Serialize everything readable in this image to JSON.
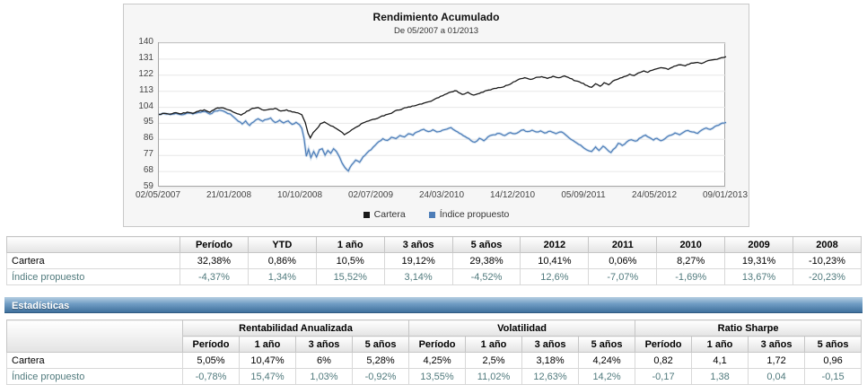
{
  "chart_data": {
    "type": "line",
    "title": "Rendimiento Acumulado",
    "subtitle": "De 05/2007 a 01/2013",
    "ylim": [
      59,
      140
    ],
    "y_ticks": [
      140,
      131,
      122,
      113,
      104,
      95,
      86,
      77,
      68,
      59
    ],
    "x_tick_labels": [
      "02/05/2007",
      "21/01/2008",
      "10/10/2008",
      "02/07/2009",
      "24/03/2010",
      "14/12/2010",
      "05/09/2011",
      "24/05/2012",
      "09/01/2013"
    ],
    "grid": "horizontal",
    "legend_position": "bottom-center",
    "series": [
      {
        "name": "Cartera",
        "color": "#1a1a1a",
        "points": [
          [
            0,
            100
          ],
          [
            0.01,
            100.6
          ],
          [
            0.02,
            100.2
          ],
          [
            0.03,
            101
          ],
          [
            0.04,
            100.4
          ],
          [
            0.05,
            101.3
          ],
          [
            0.06,
            100.6
          ],
          [
            0.07,
            101.8
          ],
          [
            0.08,
            102.6
          ],
          [
            0.09,
            101.2
          ],
          [
            0.1,
            103.2
          ],
          [
            0.11,
            103.8
          ],
          [
            0.117,
            103.2
          ],
          [
            0.126,
            102.3
          ],
          [
            0.135,
            100.8
          ],
          [
            0.145,
            99.6
          ],
          [
            0.155,
            101.8
          ],
          [
            0.165,
            103.4
          ],
          [
            0.175,
            103.9
          ],
          [
            0.185,
            102.4
          ],
          [
            0.195,
            102.9
          ],
          [
            0.205,
            103.4
          ],
          [
            0.215,
            101.9
          ],
          [
            0.225,
            102.6
          ],
          [
            0.235,
            101.4
          ],
          [
            0.245,
            100.9
          ],
          [
            0.252,
            99.8
          ],
          [
            0.258,
            95.5
          ],
          [
            0.263,
            89.5
          ],
          [
            0.267,
            86.8
          ],
          [
            0.272,
            89.8
          ],
          [
            0.278,
            91.8
          ],
          [
            0.285,
            94.8
          ],
          [
            0.292,
            95.8
          ],
          [
            0.3,
            94.2
          ],
          [
            0.31,
            92.6
          ],
          [
            0.32,
            90.6
          ],
          [
            0.327,
            88.6
          ],
          [
            0.333,
            89.8
          ],
          [
            0.34,
            91.4
          ],
          [
            0.35,
            93.2
          ],
          [
            0.36,
            95.2
          ],
          [
            0.37,
            96.4
          ],
          [
            0.381,
            97.4
          ],
          [
            0.39,
            98.6
          ],
          [
            0.4,
            99.8
          ],
          [
            0.41,
            100.6
          ],
          [
            0.42,
            102.4
          ],
          [
            0.43,
            103.2
          ],
          [
            0.44,
            104.2
          ],
          [
            0.45,
            104.8
          ],
          [
            0.46,
            105.8
          ],
          [
            0.47,
            106.6
          ],
          [
            0.48,
            107.4
          ],
          [
            0.49,
            109.2
          ],
          [
            0.5,
            110.4
          ],
          [
            0.508,
            111.6
          ],
          [
            0.515,
            112.6
          ],
          [
            0.525,
            113.2
          ],
          [
            0.535,
            111.2
          ],
          [
            0.545,
            112.4
          ],
          [
            0.555,
            110.8
          ],
          [
            0.565,
            111.8
          ],
          [
            0.575,
            113.2
          ],
          [
            0.585,
            113.8
          ],
          [
            0.595,
            114.6
          ],
          [
            0.605,
            115.2
          ],
          [
            0.615,
            116.4
          ],
          [
            0.625,
            118.2
          ],
          [
            0.635,
            119.8
          ],
          [
            0.645,
            120.6
          ],
          [
            0.655,
            119.6
          ],
          [
            0.665,
            120.8
          ],
          [
            0.675,
            121.2
          ],
          [
            0.685,
            120.2
          ],
          [
            0.695,
            121.4
          ],
          [
            0.705,
            120.6
          ],
          [
            0.715,
            121.6
          ],
          [
            0.725,
            120.2
          ],
          [
            0.735,
            118.8
          ],
          [
            0.745,
            117.6
          ],
          [
            0.755,
            116.2
          ],
          [
            0.763,
            115.2
          ],
          [
            0.77,
            117.2
          ],
          [
            0.778,
            115.8
          ],
          [
            0.785,
            117.8
          ],
          [
            0.793,
            116.6
          ],
          [
            0.8,
            118.6
          ],
          [
            0.81,
            119.9
          ],
          [
            0.82,
            121.2
          ],
          [
            0.83,
            122.6
          ],
          [
            0.838,
            121.8
          ],
          [
            0.845,
            123.2
          ],
          [
            0.855,
            124.4
          ],
          [
            0.862,
            123.6
          ],
          [
            0.87,
            124.8
          ],
          [
            0.878,
            125.6
          ],
          [
            0.885,
            126.2
          ],
          [
            0.89,
            126
          ],
          [
            0.898,
            125.2
          ],
          [
            0.905,
            126.4
          ],
          [
            0.912,
            127.2
          ],
          [
            0.92,
            127.8
          ],
          [
            0.928,
            127.2
          ],
          [
            0.935,
            128.2
          ],
          [
            0.942,
            128.8
          ],
          [
            0.95,
            129.2
          ],
          [
            0.957,
            128.6
          ],
          [
            0.965,
            129.8
          ],
          [
            0.972,
            130.4
          ],
          [
            0.98,
            130.8
          ],
          [
            0.988,
            131.4
          ],
          [
            1,
            132.4
          ]
        ]
      },
      {
        "name": "Índice propuesto",
        "color": "#4d7db8",
        "halo_color": "#a8c4e0",
        "points": [
          [
            0,
            100
          ],
          [
            0.01,
            100.4
          ],
          [
            0.02,
            99.9
          ],
          [
            0.03,
            100.6
          ],
          [
            0.04,
            99.8
          ],
          [
            0.05,
            100.8
          ],
          [
            0.06,
            100.2
          ],
          [
            0.07,
            101.2
          ],
          [
            0.08,
            101.6
          ],
          [
            0.09,
            100.2
          ],
          [
            0.1,
            101.9
          ],
          [
            0.11,
            102.2
          ],
          [
            0.117,
            101.4
          ],
          [
            0.126,
            100.2
          ],
          [
            0.133,
            98.2
          ],
          [
            0.14,
            96.2
          ],
          [
            0.147,
            94.6
          ],
          [
            0.153,
            96.4
          ],
          [
            0.16,
            93.8
          ],
          [
            0.167,
            95.8
          ],
          [
            0.175,
            97.6
          ],
          [
            0.183,
            96.2
          ],
          [
            0.19,
            97.2
          ],
          [
            0.197,
            98
          ],
          [
            0.205,
            95.4
          ],
          [
            0.213,
            96.8
          ],
          [
            0.22,
            95.2
          ],
          [
            0.228,
            96.4
          ],
          [
            0.235,
            94.4
          ],
          [
            0.242,
            95.6
          ],
          [
            0.248,
            94.2
          ],
          [
            0.252,
            92.2
          ],
          [
            0.256,
            86.5
          ],
          [
            0.26,
            76.5
          ],
          [
            0.264,
            80.5
          ],
          [
            0.268,
            75.8
          ],
          [
            0.273,
            79.2
          ],
          [
            0.278,
            76.2
          ],
          [
            0.283,
            80.2
          ],
          [
            0.288,
            80.8
          ],
          [
            0.293,
            77.2
          ],
          [
            0.298,
            79.8
          ],
          [
            0.303,
            78.2
          ],
          [
            0.308,
            80.8
          ],
          [
            0.313,
            79.2
          ],
          [
            0.318,
            76.4
          ],
          [
            0.323,
            72.8
          ],
          [
            0.328,
            70.2
          ],
          [
            0.334,
            68.3
          ],
          [
            0.34,
            71.8
          ],
          [
            0.347,
            74.4
          ],
          [
            0.354,
            73.2
          ],
          [
            0.36,
            76.2
          ],
          [
            0.367,
            78.4
          ],
          [
            0.374,
            80.2
          ],
          [
            0.381,
            82.6
          ],
          [
            0.388,
            84.8
          ],
          [
            0.395,
            86.4
          ],
          [
            0.403,
            85.4
          ],
          [
            0.41,
            87.2
          ],
          [
            0.418,
            86.4
          ],
          [
            0.425,
            88.2
          ],
          [
            0.433,
            87.4
          ],
          [
            0.44,
            89.2
          ],
          [
            0.448,
            88.4
          ],
          [
            0.455,
            90.2
          ],
          [
            0.462,
            91.2
          ],
          [
            0.467,
            91.7
          ],
          [
            0.475,
            90.4
          ],
          [
            0.483,
            91.4
          ],
          [
            0.49,
            90.2
          ],
          [
            0.5,
            91.2
          ],
          [
            0.508,
            91.8
          ],
          [
            0.515,
            92.6
          ],
          [
            0.523,
            90.8
          ],
          [
            0.53,
            89.4
          ],
          [
            0.54,
            87.6
          ],
          [
            0.55,
            85.4
          ],
          [
            0.557,
            84.4
          ],
          [
            0.565,
            86.6
          ],
          [
            0.573,
            85.2
          ],
          [
            0.58,
            87.4
          ],
          [
            0.59,
            88.6
          ],
          [
            0.6,
            89.4
          ],
          [
            0.61,
            88.2
          ],
          [
            0.62,
            89.8
          ],
          [
            0.628,
            89.2
          ],
          [
            0.635,
            90.2
          ],
          [
            0.643,
            91.4
          ],
          [
            0.65,
            90.4
          ],
          [
            0.658,
            91.2
          ],
          [
            0.665,
            90.2
          ],
          [
            0.673,
            90.8
          ],
          [
            0.68,
            89.6
          ],
          [
            0.69,
            90.6
          ],
          [
            0.7,
            89.2
          ],
          [
            0.71,
            90.2
          ],
          [
            0.72,
            87.8
          ],
          [
            0.73,
            85.4
          ],
          [
            0.74,
            83.2
          ],
          [
            0.75,
            81
          ],
          [
            0.758,
            79.6
          ],
          [
            0.763,
            79.2
          ],
          [
            0.77,
            81.8
          ],
          [
            0.776,
            79.8
          ],
          [
            0.783,
            82.2
          ],
          [
            0.79,
            80.4
          ],
          [
            0.797,
            78.6
          ],
          [
            0.805,
            81.4
          ],
          [
            0.81,
            83.8
          ],
          [
            0.817,
            82.6
          ],
          [
            0.825,
            84.6
          ],
          [
            0.833,
            85.8
          ],
          [
            0.84,
            85
          ],
          [
            0.85,
            87
          ],
          [
            0.858,
            88.4
          ],
          [
            0.865,
            87
          ],
          [
            0.872,
            85.6
          ],
          [
            0.878,
            86.6
          ],
          [
            0.885,
            85.2
          ],
          [
            0.893,
            86.6
          ],
          [
            0.9,
            88.2
          ],
          [
            0.91,
            89.6
          ],
          [
            0.918,
            88.6
          ],
          [
            0.925,
            90
          ],
          [
            0.933,
            91
          ],
          [
            0.94,
            90.2
          ],
          [
            0.95,
            89.4
          ],
          [
            0.957,
            91.2
          ],
          [
            0.965,
            92.4
          ],
          [
            0.972,
            91.6
          ],
          [
            0.98,
            93.2
          ],
          [
            0.99,
            94.6
          ],
          [
            1,
            95.6
          ]
        ]
      }
    ]
  },
  "returns_table": {
    "columns": [
      "",
      "Período",
      "YTD",
      "1 año",
      "3 años",
      "5 años",
      "2012",
      "2011",
      "2010",
      "2009",
      "2008"
    ],
    "rows": [
      {
        "label": "Cartera",
        "alt": false,
        "values": [
          "32,38%",
          "0,86%",
          "10,5%",
          "19,12%",
          "29,38%",
          "10,41%",
          "0,06%",
          "8,27%",
          "19,31%",
          "-10,23%"
        ]
      },
      {
        "label": "Índice propuesto",
        "alt": true,
        "values": [
          "-4,37%",
          "1,34%",
          "15,52%",
          "3,14%",
          "-4,52%",
          "12,6%",
          "-7,07%",
          "-1,69%",
          "13,67%",
          "-20,23%"
        ]
      }
    ]
  },
  "stats_section": {
    "title": "Estadísticas"
  },
  "stats_table": {
    "groups": [
      "Rentabilidad Anualizada",
      "Volatilidad",
      "Ratio Sharpe"
    ],
    "sub_columns": [
      "Período",
      "1 año",
      "3 años",
      "5 años"
    ],
    "rows": [
      {
        "label": "Cartera",
        "alt": false,
        "values": [
          "5,05%",
          "10,47%",
          "6%",
          "5,28%",
          "4,25%",
          "2,5%",
          "3,18%",
          "4,24%",
          "0,82",
          "4,1",
          "1,72",
          "0,96"
        ]
      },
      {
        "label": "Índice propuesto",
        "alt": true,
        "values": [
          "-0,78%",
          "15,47%",
          "1,03%",
          "-0,92%",
          "13,55%",
          "11,02%",
          "12,63%",
          "14,2%",
          "-0,17",
          "1,38",
          "0,04",
          "-0,15"
        ]
      }
    ]
  }
}
